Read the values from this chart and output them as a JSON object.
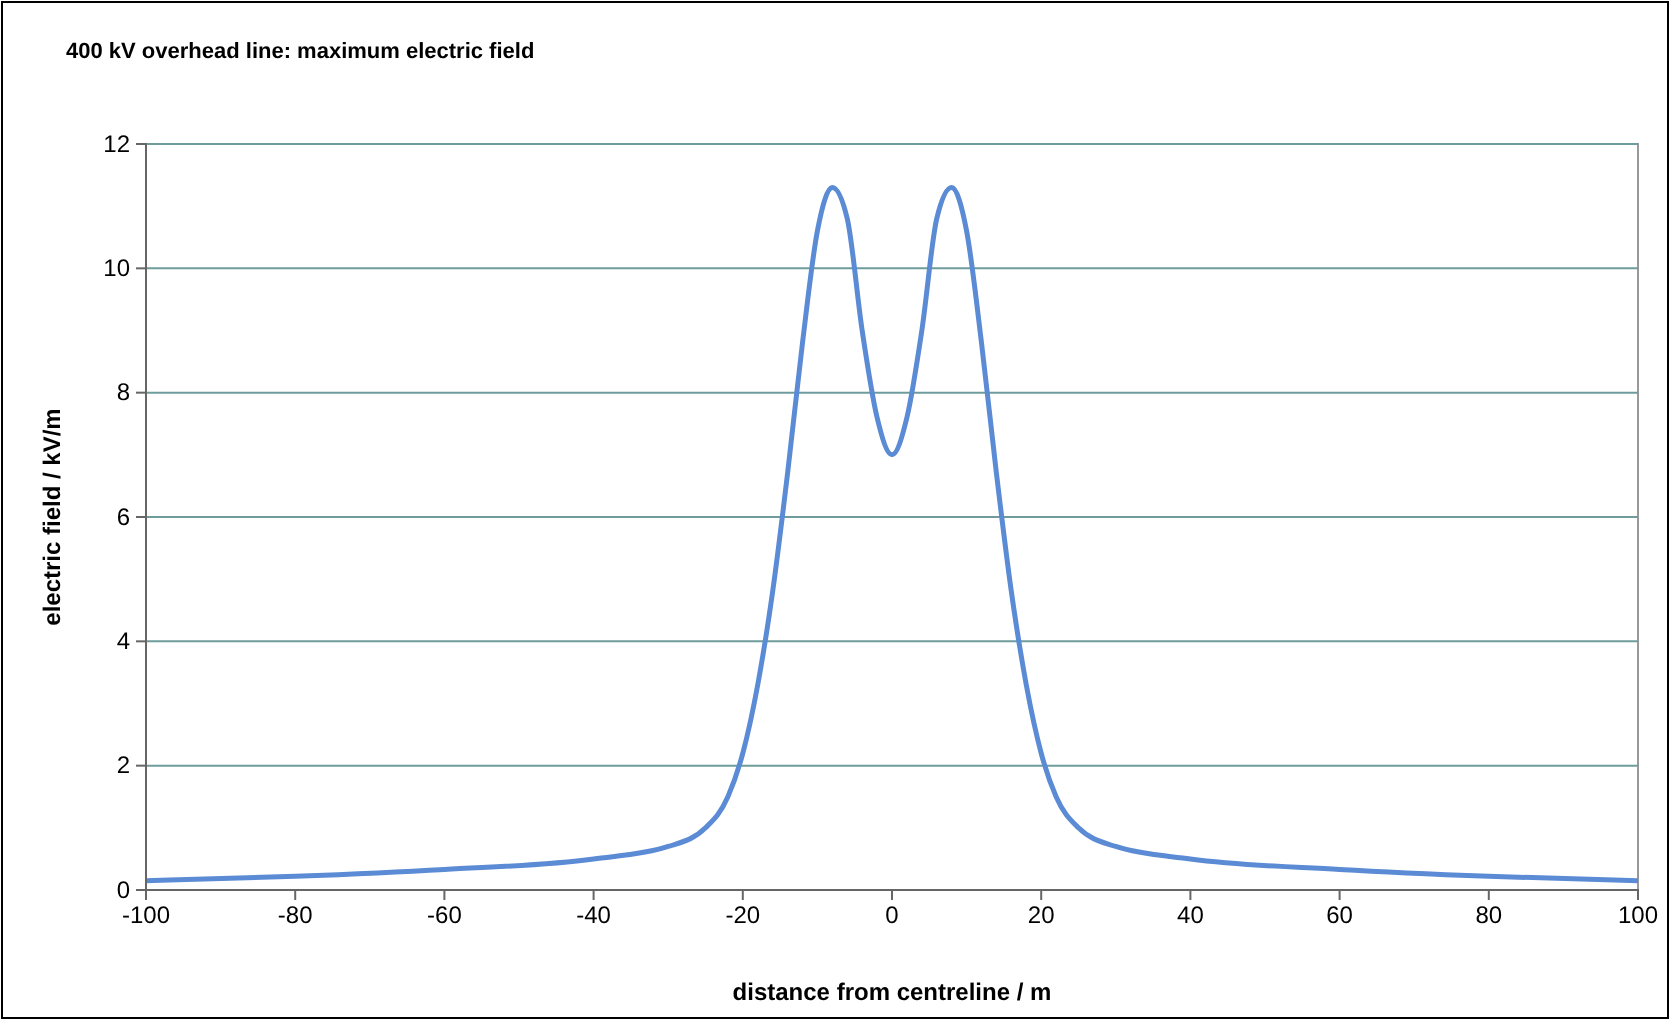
{
  "chart_data": {
    "type": "line",
    "title": "400 kV overhead line: maximum electric field",
    "xlabel": "distance from centreline / m",
    "ylabel": "electric field / kV/m",
    "x": [
      -100,
      -80,
      -60,
      -40,
      -30,
      -25,
      -22,
      -20,
      -18,
      -16,
      -14,
      -12,
      -10,
      -8,
      -6,
      -4,
      -2,
      0,
      2,
      4,
      6,
      8,
      10,
      12,
      14,
      16,
      18,
      20,
      22,
      25,
      30,
      40,
      60,
      80,
      100
    ],
    "series": [
      {
        "color": "#5b8bd4",
        "values": [
          0.15,
          0.22,
          0.33,
          0.5,
          0.7,
          1.0,
          1.5,
          2.2,
          3.3,
          4.8,
          6.7,
          8.8,
          10.6,
          11.3,
          10.8,
          9.0,
          7.6,
          7.0,
          7.6,
          9.0,
          10.8,
          11.3,
          10.6,
          8.8,
          6.7,
          4.8,
          3.3,
          2.2,
          1.5,
          1.0,
          0.7,
          0.5,
          0.33,
          0.22,
          0.15
        ]
      }
    ],
    "xlim": [
      -100,
      100
    ],
    "xticks": [
      -100,
      -80,
      -60,
      -40,
      -20,
      0,
      20,
      40,
      60,
      80,
      100
    ],
    "ylim": [
      0,
      12
    ],
    "yticks": [
      0,
      2,
      4,
      6,
      8,
      10,
      12
    ],
    "grid": "y",
    "marker": "none",
    "line_style": "solid"
  }
}
